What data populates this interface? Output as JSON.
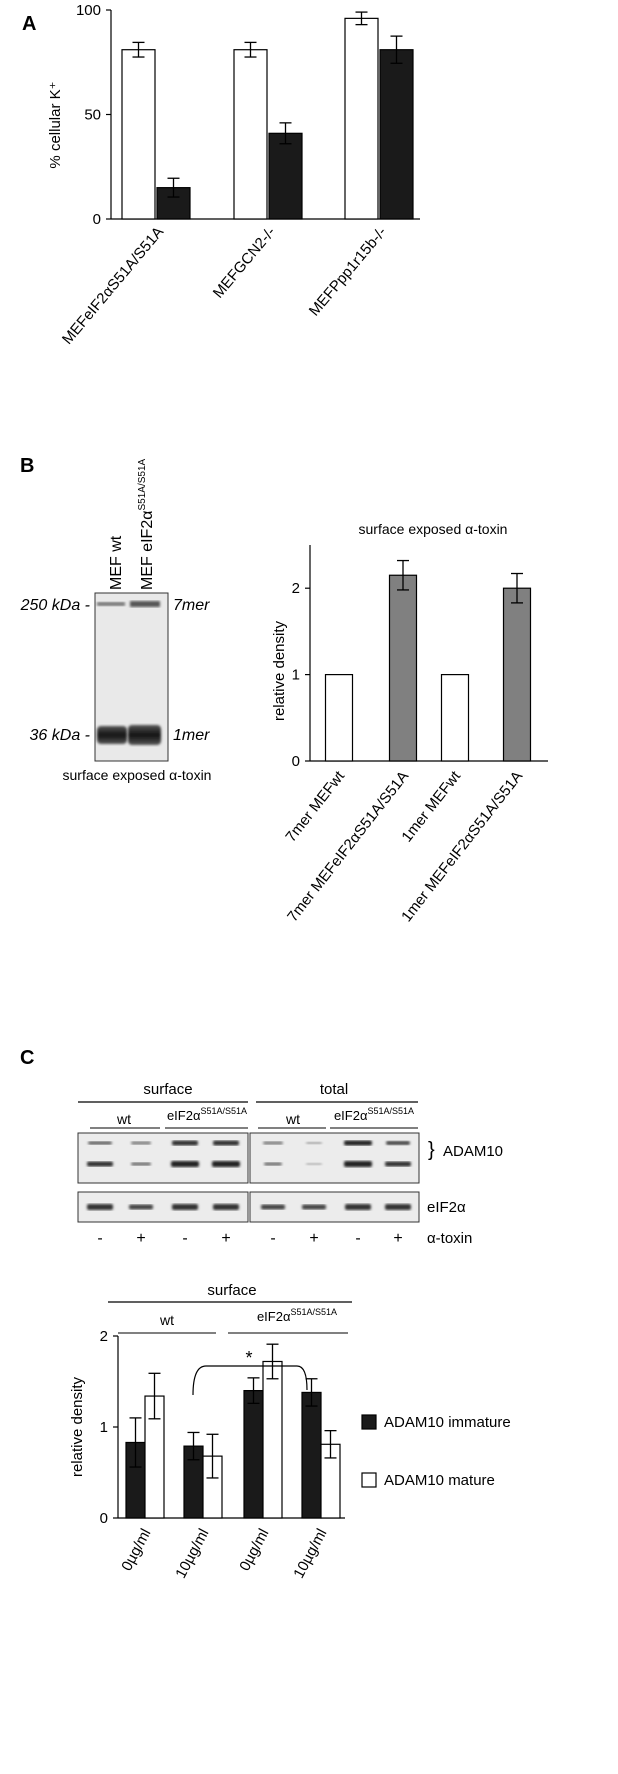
{
  "panels": {
    "a": "A",
    "b": "B",
    "c": "C"
  },
  "chart_data": [
    {
      "id": "A",
      "type": "bar",
      "ylabel": "% cellular K⁺",
      "ylim": [
        0,
        100
      ],
      "yticks": [
        0,
        50,
        100
      ],
      "categories": [
        "MEFeIF2αS51A/S51A",
        "MEFGCN2-/-",
        "MEFPpp1r15b-/-"
      ],
      "series": [
        {
          "color": "#ffffff",
          "values": [
            81,
            81,
            96
          ],
          "errors": [
            3.5,
            3.5,
            3
          ]
        },
        {
          "color": "#1a1a1a",
          "values": [
            15,
            41,
            81
          ],
          "errors": [
            4.5,
            5,
            6.5
          ]
        }
      ]
    },
    {
      "id": "B",
      "type": "bar",
      "title": "surface exposed α-toxin",
      "ylabel": "relative density",
      "ylim": [
        0,
        2.5
      ],
      "yticks": [
        0,
        1,
        2
      ],
      "categories": [
        "7mer  MEFwt",
        "7mer  MEFeIF2αS51A/S51A",
        "1mer MEFwt",
        "1mer MEFeIF2αS51A/S51A"
      ],
      "values": [
        1,
        2.15,
        1,
        2.0
      ],
      "errors": [
        0,
        0.17,
        0,
        0.17
      ],
      "colors": [
        "#ffffff",
        "#808080",
        "#ffffff",
        "#808080"
      ]
    },
    {
      "id": "C",
      "type": "bar",
      "ylabel": "relative density",
      "ylim": [
        0,
        2
      ],
      "yticks": [
        0,
        1,
        2
      ],
      "categories": [
        "0µg/ml",
        "10µg/ml",
        "0µg/ml",
        "10µg/ml"
      ],
      "groups": {
        "top": "surface",
        "left": "wt",
        "right": "eIF2α",
        "right_sup": "S51A/S51A"
      },
      "significance": "*",
      "series": [
        {
          "name": "ADAM10 immature",
          "color": "#1a1a1a",
          "values": [
            0.83,
            0.79,
            1.4,
            1.38
          ],
          "errors": [
            0.27,
            0.15,
            0.14,
            0.15
          ]
        },
        {
          "name": "ADAM10 mature",
          "color": "#ffffff",
          "values": [
            1.34,
            0.68,
            1.72,
            0.81
          ],
          "errors": [
            0.25,
            0.24,
            0.19,
            0.15
          ]
        }
      ]
    }
  ],
  "blot_b": {
    "lanes": [
      "MEF wt",
      "MEF eIF2α"
    ],
    "lane2_sup": "S51A/S51A",
    "markers": [
      "250 kDa -",
      "36 kDa -"
    ],
    "bands": [
      "7mer",
      "1mer"
    ],
    "caption": "surface exposed α-toxin"
  },
  "blot_c": {
    "headers": [
      "surface",
      "total"
    ],
    "wt": "wt",
    "mut": "eIF2α",
    "mut_sup": "S51A/S51A",
    "labels": [
      "ADAM10",
      "eIF2α",
      "α-toxin"
    ],
    "signs": [
      "-",
      "+",
      "-",
      "+",
      "-",
      "+",
      "-",
      "+"
    ]
  }
}
